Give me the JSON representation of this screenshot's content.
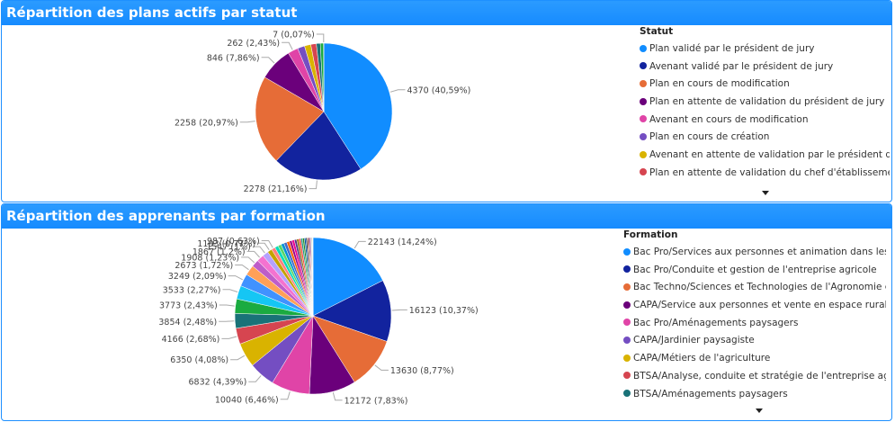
{
  "panels": [
    {
      "title": "Répartition des plans actifs par statut",
      "legend_title": "Statut",
      "chart_data": {
        "type": "pie",
        "title": "Répartition des plans actifs par statut",
        "slices": [
          {
            "label": "Plan validé par le président de jury",
            "value": 4370,
            "pct": "40,59%",
            "color": "#118dff"
          },
          {
            "label": "Avenant validé par le président de jury",
            "value": 2278,
            "pct": "21,16%",
            "color": "#12239e"
          },
          {
            "label": "Plan en cours de modification",
            "value": 2258,
            "pct": "20,97%",
            "color": "#e66c37"
          },
          {
            "label": "Plan en attente de validation du président de jury",
            "value": 846,
            "pct": "7,86%",
            "color": "#6b007b"
          },
          {
            "label": "Avenant en cours de modification",
            "value": 262,
            "pct": "2,43%",
            "color": "#e044a7"
          },
          {
            "label": "Plan en cours de création",
            "value": 180,
            "pct": "",
            "color": "#744ec2"
          },
          {
            "label": "Avenant en attente de validation par le président de jury",
            "value": 160,
            "pct": "",
            "color": "#d9b300"
          },
          {
            "label": "Plan en attente de validation du chef d'établissement",
            "value": 140,
            "pct": "",
            "color": "#d64550"
          },
          {
            "label": "",
            "value": 100,
            "pct": "",
            "color": "#197278"
          },
          {
            "label": "",
            "value": 80,
            "pct": "",
            "color": "#1aab40"
          },
          {
            "label": "",
            "value": 7,
            "pct": "0,07%",
            "color": "#15c6f4"
          }
        ]
      }
    },
    {
      "title": "Répartition des apprenants par formation",
      "legend_title": "Formation",
      "chart_data": {
        "type": "pie",
        "title": "Répartition des apprenants par formation",
        "slices": [
          {
            "label": "Bac Pro/Services aux personnes et animation dans les territ...",
            "value": 22143,
            "pct": "14,24%",
            "color": "#118dff"
          },
          {
            "label": "Bac Pro/Conduite et gestion de l'entreprise agricole",
            "value": 16123,
            "pct": "10,37%",
            "color": "#12239e"
          },
          {
            "label": "Bac Techno/Sciences et Technologies de l'Agronomie et du...",
            "value": 13630,
            "pct": "8,77%",
            "color": "#e66c37"
          },
          {
            "label": "CAPA/Service aux personnes et vente en espace rural",
            "value": 12172,
            "pct": "7,83%",
            "color": "#6b007b"
          },
          {
            "label": "Bac Pro/Aménagements paysagers",
            "value": 10040,
            "pct": "6,46%",
            "color": "#e044a7"
          },
          {
            "label": "CAPA/Jardinier paysagiste",
            "value": 6832,
            "pct": "4,39%",
            "color": "#744ec2"
          },
          {
            "label": "CAPA/Métiers de l'agriculture",
            "value": 6350,
            "pct": "4,08%",
            "color": "#d9b300"
          },
          {
            "label": "BTSA/Analyse, conduite et stratégie de l'entreprise agricole",
            "value": 4166,
            "pct": "2,68%",
            "color": "#d64550"
          },
          {
            "label": "BTSA/Aménagements paysagers",
            "value": 3854,
            "pct": "2,48%",
            "color": "#197278"
          },
          {
            "label": "",
            "value": 3773,
            "pct": "2,43%",
            "color": "#1aab40"
          },
          {
            "label": "",
            "value": 3533,
            "pct": "2,27%",
            "color": "#15c6f4"
          },
          {
            "label": "",
            "value": 3249,
            "pct": "2,09%",
            "color": "#4092ff"
          },
          {
            "label": "",
            "value": 2673,
            "pct": "1,72%",
            "color": "#ffa058"
          },
          {
            "label": "",
            "value": 1908,
            "pct": "1,23%",
            "color": "#be5dc9"
          },
          {
            "label": "",
            "value": 1867,
            "pct": "1,2%",
            "color": "#f472d0"
          },
          {
            "label": "",
            "value": 1547,
            "pct": "1%",
            "color": "#b5a1ff"
          },
          {
            "label": "",
            "value": 1193,
            "pct": "0,77%",
            "color": "#c4a200"
          },
          {
            "label": "",
            "value": 987,
            "pct": "0,63%",
            "color": "#ff8080"
          },
          {
            "label": "",
            "value": 900,
            "pct": "",
            "color": "#00dbbc"
          },
          {
            "label": "",
            "value": 850,
            "pct": "",
            "color": "#5bd667"
          },
          {
            "label": "",
            "value": 800,
            "pct": "",
            "color": "#0091d5"
          },
          {
            "label": "",
            "value": 760,
            "pct": "",
            "color": "#4668c5"
          },
          {
            "label": "",
            "value": 720,
            "pct": "",
            "color": "#ff6300"
          },
          {
            "label": "",
            "value": 680,
            "pct": "",
            "color": "#99008a"
          },
          {
            "label": "",
            "value": 640,
            "pct": "",
            "color": "#ec008c"
          },
          {
            "label": "",
            "value": 600,
            "pct": "",
            "color": "#533285"
          },
          {
            "label": "",
            "value": 560,
            "pct": "",
            "color": "#99700a"
          },
          {
            "label": "",
            "value": 520,
            "pct": "",
            "color": "#ff4141"
          },
          {
            "label": "",
            "value": 480,
            "pct": "",
            "color": "#1f9a85"
          },
          {
            "label": "",
            "value": 440,
            "pct": "",
            "color": "#25891c"
          },
          {
            "label": "",
            "value": 400,
            "pct": "",
            "color": "#0057a2"
          },
          {
            "label": "",
            "value": 360,
            "pct": "",
            "color": "#002050"
          },
          {
            "label": "",
            "value": 320,
            "pct": "",
            "color": "#c94f0f"
          },
          {
            "label": "",
            "value": 280,
            "pct": "",
            "color": "#450f54"
          },
          {
            "label": "",
            "value": 240,
            "pct": "",
            "color": "#b60064"
          },
          {
            "label": "",
            "value": 200,
            "pct": "",
            "color": "#34124f"
          },
          {
            "label": "",
            "value": 160,
            "pct": "",
            "color": "#6a5a29"
          },
          {
            "label": "",
            "value": 130,
            "pct": "",
            "color": "#1aab40"
          },
          {
            "label": "",
            "value": 100,
            "pct": "",
            "color": "#15c6f4"
          },
          {
            "label": "",
            "value": 80,
            "pct": "",
            "color": "#d9b300"
          }
        ]
      }
    }
  ]
}
